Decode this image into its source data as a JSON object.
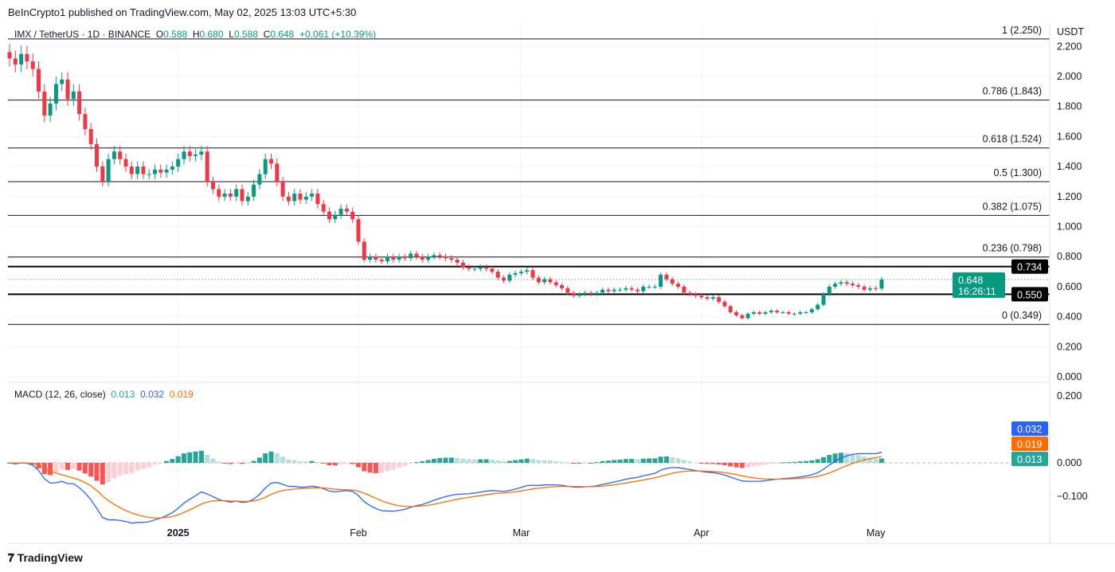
{
  "header": {
    "published": "BeInCrypto1 published on TradingView.com, May 02, 2025 13:03 UTC+5:30",
    "symbol": "IMX / TetherUS · 1D · BINANCE",
    "open_label": "O",
    "open": "0.588",
    "high_label": "H",
    "high": "0.680",
    "low_label": "L",
    "low": "0.588",
    "close_label": "C",
    "close": "0.648",
    "change": "+0.061 (+10.39%)"
  },
  "currency": "USDT",
  "macd_legend": {
    "label": "MACD (12, 26, close)",
    "hist": "0.013",
    "macd": "0.032",
    "signal": "0.019"
  },
  "footer": {
    "logo": "TradingView"
  },
  "colors": {
    "up": "#089981",
    "down": "#f23645",
    "macd": "#2962ff",
    "signal": "#ff6d00",
    "hist_up": "#26a69a",
    "hist_down": "#ff5252"
  },
  "chart_data": [
    {
      "type": "candlestick",
      "title": "IMX / TetherUS · 1D · BINANCE",
      "x_start": "2024-12-03",
      "x_end": "2025-05-02",
      "x_tick_labels": [
        "2025",
        "Feb",
        "Mar",
        "Apr",
        "May"
      ],
      "y_tick_labels": [
        "0.000",
        "0.200",
        "0.400",
        "0.600",
        "0.800",
        "1.000",
        "1.200",
        "1.400",
        "1.600",
        "1.800",
        "2.000",
        "2.200"
      ],
      "ylim": [
        0,
        2.3
      ],
      "closes": [
        2.12,
        2.08,
        2.15,
        2.1,
        2.05,
        1.9,
        1.74,
        1.82,
        1.95,
        1.98,
        1.85,
        1.9,
        1.75,
        1.65,
        1.55,
        1.4,
        1.3,
        1.45,
        1.5,
        1.45,
        1.4,
        1.35,
        1.4,
        1.35,
        1.35,
        1.38,
        1.36,
        1.38,
        1.4,
        1.45,
        1.5,
        1.47,
        1.48,
        1.5,
        1.3,
        1.25,
        1.2,
        1.22,
        1.2,
        1.25,
        1.17,
        1.2,
        1.28,
        1.35,
        1.45,
        1.42,
        1.3,
        1.2,
        1.17,
        1.22,
        1.18,
        1.2,
        1.22,
        1.15,
        1.1,
        1.05,
        1.08,
        1.12,
        1.1,
        1.05,
        0.9,
        0.78,
        0.8,
        0.78,
        0.77,
        0.8,
        0.78,
        0.8,
        0.79,
        0.82,
        0.8,
        0.78,
        0.8,
        0.81,
        0.8,
        0.79,
        0.78,
        0.76,
        0.73,
        0.72,
        0.72,
        0.73,
        0.72,
        0.7,
        0.66,
        0.64,
        0.68,
        0.69,
        0.7,
        0.71,
        0.66,
        0.63,
        0.65,
        0.63,
        0.61,
        0.59,
        0.56,
        0.54,
        0.55,
        0.56,
        0.55,
        0.56,
        0.58,
        0.57,
        0.58,
        0.58,
        0.59,
        0.58,
        0.57,
        0.6,
        0.6,
        0.6,
        0.68,
        0.65,
        0.62,
        0.6,
        0.56,
        0.55,
        0.54,
        0.53,
        0.52,
        0.53,
        0.5,
        0.47,
        0.43,
        0.41,
        0.39,
        0.42,
        0.43,
        0.42,
        0.43,
        0.44,
        0.43,
        0.43,
        0.42,
        0.42,
        0.43,
        0.43,
        0.45,
        0.48,
        0.55,
        0.6,
        0.62,
        0.63,
        0.62,
        0.61,
        0.6,
        0.58,
        0.59,
        0.588,
        0.648
      ],
      "last_price": "0.648",
      "countdown": "16:26:11",
      "horizontal_levels": [
        {
          "value": 0.734,
          "label": "0.734"
        },
        {
          "value": 0.55,
          "label": "0.550"
        }
      ],
      "fib_levels": [
        {
          "ratio": "1",
          "value": 2.25,
          "label": "1 (2.250)"
        },
        {
          "ratio": "0.786",
          "value": 1.843,
          "label": "0.786 (1.843)"
        },
        {
          "ratio": "0.618",
          "value": 1.524,
          "label": "0.618 (1.524)"
        },
        {
          "ratio": "0.5",
          "value": 1.3,
          "label": "0.5 (1.300)"
        },
        {
          "ratio": "0.382",
          "value": 1.075,
          "label": "0.382 (1.075)"
        },
        {
          "ratio": "0.236",
          "value": 0.798,
          "label": "0.236 (0.798)"
        },
        {
          "ratio": "0",
          "value": 0.349,
          "label": "0 (0.349)"
        }
      ]
    },
    {
      "type": "line",
      "title": "MACD (12, 26, close)",
      "series": [
        {
          "name": "MACD"
        },
        {
          "name": "Signal"
        },
        {
          "name": "Histogram"
        }
      ],
      "y_tick_labels": [
        "0.200",
        "0.000",
        "−0.100"
      ],
      "ylim": [
        -0.15,
        0.22
      ],
      "last_values": {
        "macd": "0.032",
        "signal": "0.019",
        "hist": "0.013"
      }
    }
  ]
}
